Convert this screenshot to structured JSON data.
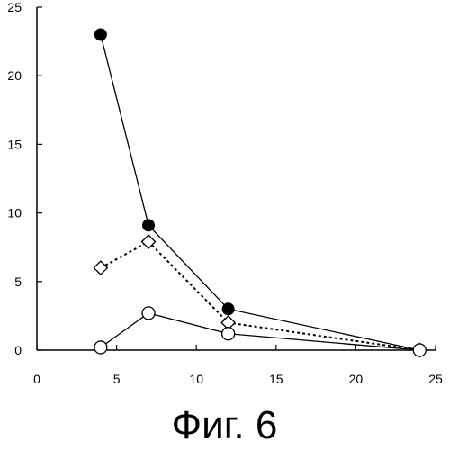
{
  "caption": "Фиг. 6",
  "chart_data": {
    "type": "line",
    "title": "",
    "xlabel": "",
    "ylabel": "",
    "xlim": [
      0,
      25
    ],
    "ylim": [
      0,
      25
    ],
    "x_ticks": [
      0,
      5,
      10,
      15,
      20,
      25
    ],
    "y_ticks": [
      0,
      5,
      10,
      15,
      20,
      25
    ],
    "grid": false,
    "legend": "none",
    "series": [
      {
        "marker": "filled-circle",
        "line": "solid",
        "color": "#000000",
        "x": [
          4,
          7,
          12,
          24
        ],
        "y": [
          23,
          9.1,
          3,
          0
        ]
      },
      {
        "marker": "open-diamond",
        "line": "dotted",
        "color": "#000000",
        "x": [
          4,
          7,
          12,
          24
        ],
        "y": [
          6,
          7.9,
          2,
          0
        ]
      },
      {
        "marker": "open-circle",
        "line": "solid",
        "color": "#000000",
        "x": [
          4,
          7,
          12,
          24
        ],
        "y": [
          0.2,
          2.7,
          1.2,
          0
        ]
      }
    ]
  }
}
